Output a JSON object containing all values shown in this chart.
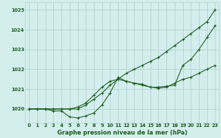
{
  "title": "Graphe pression niveau de la mer (hPa)",
  "bg_color": "#d4eeee",
  "grid_color": "#b8d4d4",
  "line_color": "#1a5c1a",
  "xlim": [
    -0.5,
    23.5
  ],
  "ylim": [
    1019.3,
    1025.4
  ],
  "yticks": [
    1020,
    1021,
    1022,
    1023,
    1024,
    1025
  ],
  "xticks": [
    0,
    1,
    2,
    3,
    4,
    5,
    6,
    7,
    8,
    9,
    10,
    11,
    12,
    13,
    14,
    15,
    16,
    17,
    18,
    19,
    20,
    21,
    22,
    23
  ],
  "series": [
    [
      1020.0,
      1020.0,
      1020.0,
      1020.0,
      1020.0,
      1020.0,
      1020.0,
      1020.2,
      1020.5,
      1020.8,
      1021.2,
      1021.5,
      1021.8,
      1022.0,
      1022.2,
      1022.4,
      1022.6,
      1022.9,
      1023.2,
      1023.5,
      1023.8,
      1024.1,
      1024.4,
      1025.0
    ],
    [
      1020.0,
      1020.0,
      1020.0,
      1019.9,
      1019.9,
      1019.6,
      1019.55,
      1019.65,
      1019.8,
      1020.2,
      1020.8,
      1021.6,
      1021.4,
      1021.3,
      1021.2,
      1021.1,
      1021.1,
      1021.15,
      1021.2,
      1022.2,
      1022.5,
      1023.0,
      1023.6,
      1024.2
    ],
    [
      1020.0,
      1020.0,
      1020.0,
      1020.0,
      1020.0,
      1020.0,
      1020.1,
      1020.3,
      1020.7,
      1021.1,
      1021.4,
      1021.5,
      1021.4,
      1021.3,
      1021.25,
      1021.1,
      1021.05,
      1021.1,
      1021.3,
      1021.5,
      1021.6,
      1021.8,
      1022.0,
      1022.2
    ]
  ]
}
